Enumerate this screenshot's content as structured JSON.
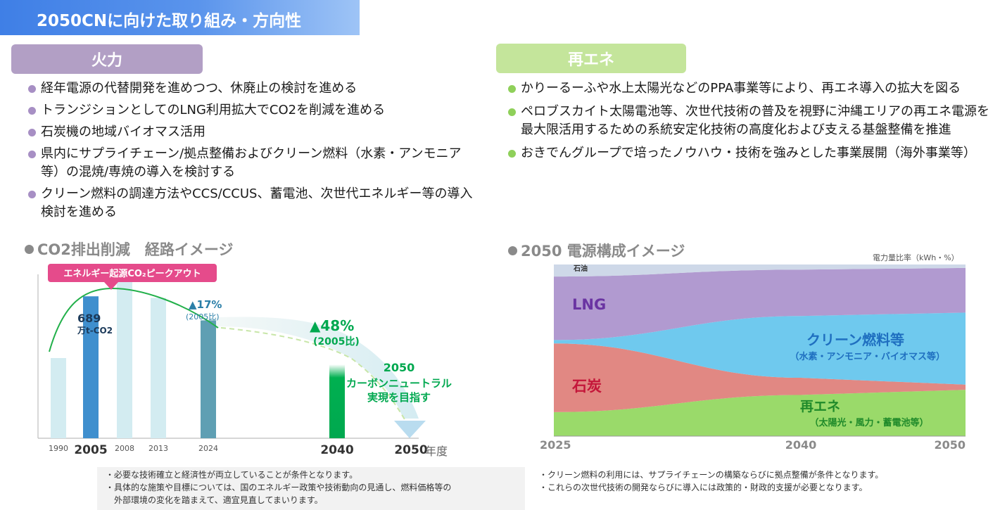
{
  "title": "2050CNに向けた取り組み・方向性",
  "thermal": {
    "header": "火力",
    "bullets": [
      "経年電源の代替開発を進めつつ、休廃止の検討を進める",
      "トランジションとしてのLNG利用拡大でCO2を削減を進める",
      "石炭機の地域バイオマス活用",
      "県内にサプライチェーン/拠点整備およびクリーン燃料（水素・アンモニア等）の混焼/専焼の導入を検討する",
      "クリーン燃料の調達方法やCCS/CCUS、蓄電池、次世代エネルギー等の導入検討を進める"
    ]
  },
  "renewable": {
    "header": "再エネ",
    "bullets": [
      "かりーるーふや水上太陽光などのPPA事業等により、再エネ導入の拡大を図る",
      "ペロブスカイト太陽電池等、次世代技術の普及を視野に沖縄エリアの再エネ電源を最大限活用するための系統安定化技術の高度化および支える基盤整備を推進",
      "おきでんグループで培ったノウハウ・技術を強みとした事業展開（海外事業等）"
    ]
  },
  "co2_section": {
    "title": "CO2排出削減　経路イメージ"
  },
  "mix_section": {
    "title": "2050 電源構成イメージ",
    "unit": "電力量比率（kWh・%）"
  },
  "colors": {
    "thermal": "#b29fc5",
    "renewable": "#c4e59b",
    "title_bar": "#3f7fe6",
    "green": "#00a84f",
    "teal": "#2b9bb0",
    "pink": "#e54b8b"
  },
  "chart_data": [
    {
      "type": "bar",
      "categories": [
        "1990",
        "2005",
        "2008",
        "2013",
        "2024",
        "2040",
        "2050"
      ],
      "values": [
        100,
        177,
        197,
        175,
        147,
        92,
        0
      ],
      "series_highlight": {
        "2005": "689",
        "2024": "▲17%",
        "2040": "▲48%"
      },
      "annotations": {
        "peak_label": "エネルギー起源CO₂ピークアウト",
        "value_2005": "689",
        "unit_2005": "万t-CO2",
        "reduction_2024": "▲17%",
        "reduction_2024_sub": "(2005比)",
        "reduction_2040": "▲48%",
        "reduction_2040_sub": "(2005比)",
        "goal_year": "2050",
        "goal_line1": "カーボンニュートラル",
        "goal_line2": "実現を目指す",
        "xunit": "年度"
      }
    },
    {
      "type": "area",
      "x": [
        "2025",
        "2040",
        "2050"
      ],
      "series": [
        {
          "name": "再エネ",
          "values": [
            14,
            24,
            27
          ],
          "sub": "（太陽光・風力・蓄電池等）",
          "color": "#8fd65a"
        },
        {
          "name": "石炭",
          "values": [
            40,
            10,
            3
          ],
          "color": "#de7b76"
        },
        {
          "name": "クリーン燃料等",
          "values": [
            2,
            36,
            42
          ],
          "sub": "（水素・アンモニア・バイオマス等）",
          "color": "#5fc3ec"
        },
        {
          "name": "LNG",
          "values": [
            37,
            27,
            26
          ],
          "color": "#a98fcb"
        },
        {
          "name": "石油",
          "values": [
            7,
            3,
            2
          ],
          "color": "#c9d4e6"
        }
      ],
      "ylim": [
        0,
        100
      ]
    }
  ],
  "notes_left": [
    "・必要な技術確立と経済性が両立していることが条件となります。",
    "・具体的な施策や目標については、国のエネルギー政策や技術動向の見通し、燃料価格等の",
    "　外部環境の変化を踏まえて、適宜見直してまいります。"
  ],
  "notes_right": [
    "・クリーン燃料の利用には、サプライチェーンの構築ならびに拠点整備が条件となります。",
    "・これらの次世代技術の開発ならびに導入には政策的・財政的支援が必要となります。"
  ]
}
